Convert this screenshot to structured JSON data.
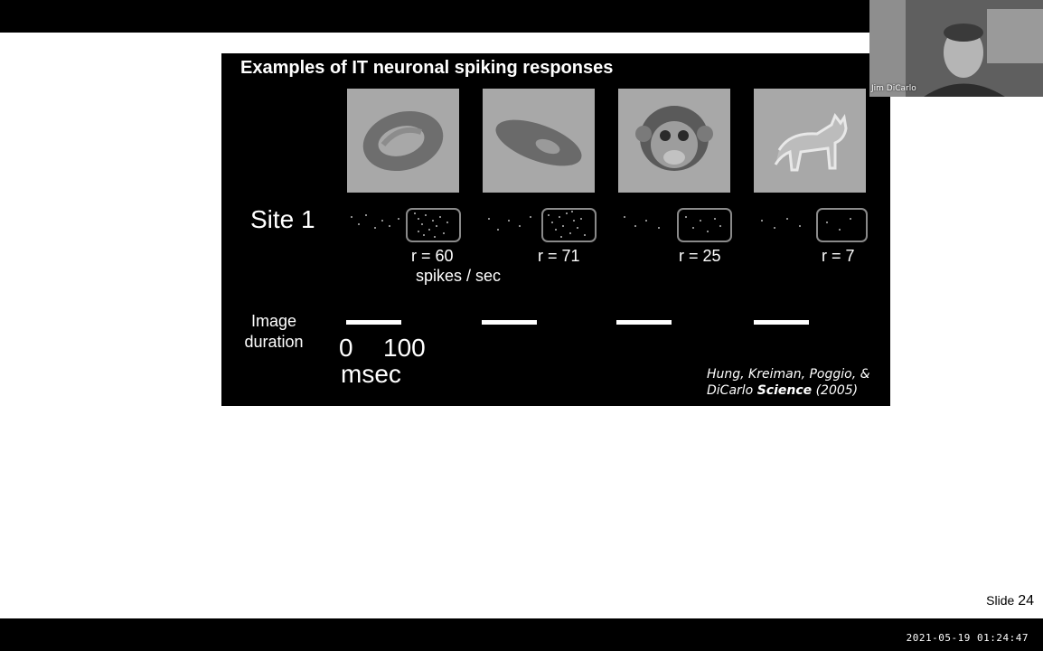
{
  "slide": {
    "title": "Examples of IT neuronal spiking responses",
    "site_label": "Site 1",
    "responses": [
      {
        "rate": "r = 60"
      },
      {
        "rate": "r = 71"
      },
      {
        "rate": "r = 25"
      },
      {
        "rate": "r = 7"
      }
    ],
    "rate_unit": "spikes / sec",
    "image_duration_line1": "Image",
    "image_duration_line2": "duration",
    "scale_start": "0",
    "scale_end": "100",
    "scale_unit": "msec",
    "citation_line1": "Hung, Kreiman, Poggio, &",
    "citation_author": "DiCarlo",
    "citation_journal": "Science",
    "citation_year": "(2005)"
  },
  "stimuli_icons": [
    "torus-object-icon",
    "elongated-object-icon",
    "monkey-face-icon",
    "cat-figure-icon"
  ],
  "slide_footer": {
    "label": "Slide",
    "number": "24"
  },
  "webcam": {
    "participant_name": "Jim DiCarlo"
  },
  "recording": {
    "timestamp": "2021-05-19 01:24:47"
  },
  "colors": {
    "panel_background": "#000000",
    "slide_background": "#ffffff",
    "stimulus_background": "#a8a8a8",
    "highlight_box": "#8a8a8a"
  }
}
